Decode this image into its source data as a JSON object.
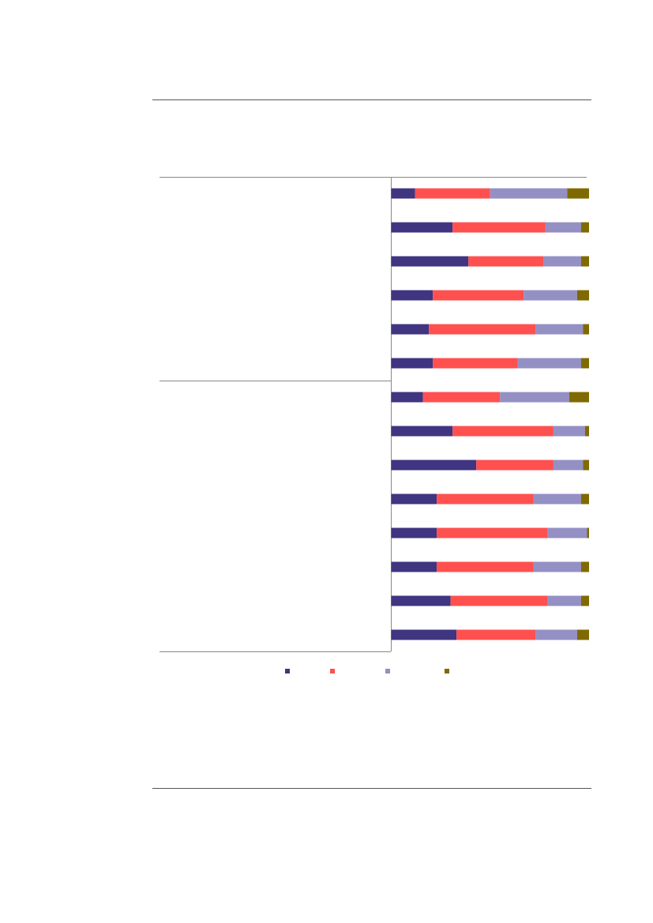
{
  "chart_data": {
    "type": "stacked-bar-horizontal",
    "categories": [
      null,
      null,
      null,
      null,
      null,
      null,
      null,
      null,
      null,
      null,
      null,
      null,
      null,
      null
    ],
    "xlim": [
      0,
      100
    ],
    "series": [
      {
        "color": "#3f3580",
        "values": [
          12,
          31,
          39,
          21,
          19,
          21,
          16,
          31,
          43,
          23,
          23,
          23,
          30,
          33
        ]
      },
      {
        "color": "#ff5050",
        "values": [
          38,
          47,
          38,
          46,
          54,
          43,
          39,
          51,
          39,
          49,
          56,
          49,
          49,
          40
        ]
      },
      {
        "color": "#9490c4",
        "values": [
          39,
          18,
          19,
          27,
          24,
          32,
          35,
          16,
          15,
          24,
          20,
          24,
          17,
          21
        ]
      },
      {
        "color": "#7f6a00",
        "values": [
          11,
          4,
          4,
          6,
          3,
          4,
          10,
          2,
          3,
          4,
          1,
          4,
          4,
          6
        ]
      }
    ]
  }
}
